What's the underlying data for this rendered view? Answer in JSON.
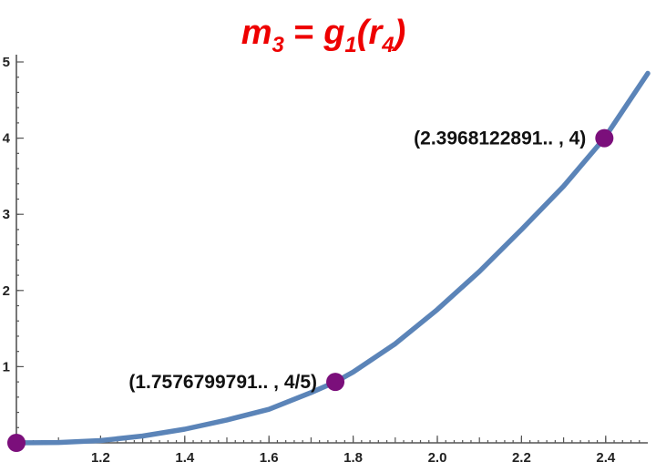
{
  "chart_data": {
    "type": "line",
    "title": {
      "lhs_var": "m",
      "lhs_sub": "3",
      "equals": " = ",
      "fn": "g",
      "fn_sub": "1",
      "open": "(",
      "arg": "r",
      "arg_sub": "4",
      "close": ")"
    },
    "title_color": "#ee0000",
    "xlabel": "",
    "ylabel": "",
    "xlim": [
      1.0,
      2.5
    ],
    "ylim": [
      0,
      5
    ],
    "x_ticks": [
      {
        "value": 1.2,
        "label": "1.2"
      },
      {
        "value": 1.4,
        "label": "1.4"
      },
      {
        "value": 1.6,
        "label": "1.6"
      },
      {
        "value": 1.8,
        "label": "1.8"
      },
      {
        "value": 2.0,
        "label": "2.0"
      },
      {
        "value": 2.2,
        "label": "2.2"
      },
      {
        "value": 2.4,
        "label": "2.4"
      }
    ],
    "y_ticks": [
      {
        "value": 1,
        "label": "1"
      },
      {
        "value": 2,
        "label": "2"
      },
      {
        "value": 3,
        "label": "3"
      },
      {
        "value": 4,
        "label": "4"
      },
      {
        "value": 5,
        "label": "5"
      }
    ],
    "curve": {
      "color": "#5b84b8",
      "x": [
        1.0,
        1.1,
        1.2,
        1.3,
        1.4,
        1.5,
        1.6,
        1.7,
        1.758,
        1.8,
        1.9,
        2.0,
        2.1,
        2.2,
        2.3,
        2.397,
        2.5
      ],
      "y": [
        0.0,
        0.005,
        0.03,
        0.09,
        0.18,
        0.3,
        0.44,
        0.66,
        0.8,
        0.93,
        1.3,
        1.75,
        2.25,
        2.8,
        3.37,
        4.0,
        4.85
      ]
    },
    "points": [
      {
        "x": 1.0,
        "y": 0,
        "label": "",
        "color": "#7b0f7b"
      },
      {
        "x": 1.7576799791,
        "y": 0.8,
        "label": "(1.7576799791.. , 4/5)",
        "color": "#7b0f7b"
      },
      {
        "x": 2.3968122891,
        "y": 4,
        "label": "(2.3968122891.. , 4)",
        "color": "#7b0f7b"
      }
    ]
  }
}
